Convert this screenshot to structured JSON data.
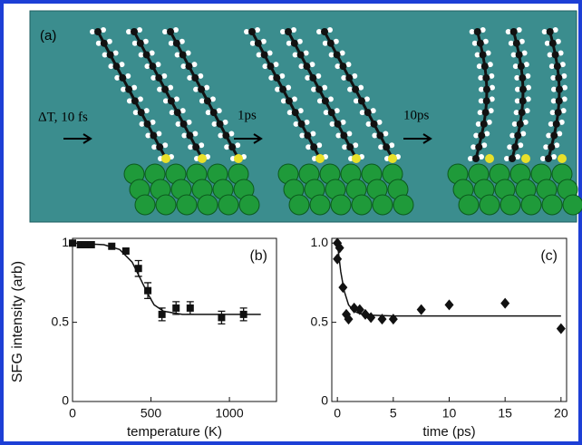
{
  "panel_a": {
    "label": "(a)",
    "step1": "ΔT, 10 fs",
    "step2": "1ps",
    "step3": "10ps"
  },
  "y_label": "SFG intensity (arb)",
  "chart_data": [
    {
      "type": "scatter",
      "panel": "(b)",
      "x_label": "temperature (K)",
      "marker": "square",
      "color": "#111111",
      "x": [
        0,
        50,
        80,
        120,
        250,
        340,
        420,
        480,
        570,
        660,
        750,
        950,
        1090
      ],
      "values": [
        1.0,
        0.99,
        0.99,
        0.99,
        0.98,
        0.95,
        0.84,
        0.7,
        0.55,
        0.59,
        0.59,
        0.53,
        0.55
      ],
      "errors": [
        0,
        0,
        0,
        0,
        0,
        0,
        0.05,
        0.05,
        0.04,
        0.04,
        0.04,
        0.04,
        0.04
      ],
      "fit": {
        "x": [
          0,
          200,
          300,
          380,
          440,
          480,
          520,
          580,
          700,
          1200
        ],
        "values": [
          1.0,
          0.99,
          0.96,
          0.88,
          0.76,
          0.68,
          0.61,
          0.57,
          0.55,
          0.55
        ]
      },
      "xlim": [
        0,
        1300
      ],
      "ylim": [
        0,
        1.03
      ],
      "xticks": [
        0,
        500,
        1000
      ],
      "yticks": [
        0,
        0.5,
        1
      ]
    },
    {
      "type": "scatter",
      "panel": "(c)",
      "x_label": "time (ps)",
      "marker": "diamond",
      "color": "#111111",
      "x": [
        0,
        0,
        0.2,
        0.5,
        0.8,
        1,
        1.5,
        2,
        2.5,
        3,
        4,
        5,
        7.5,
        10,
        15,
        20
      ],
      "values": [
        0.9,
        1.0,
        0.97,
        0.72,
        0.55,
        0.52,
        0.59,
        0.58,
        0.55,
        0.53,
        0.52,
        0.52,
        0.58,
        0.61,
        0.62,
        0.46
      ],
      "fit": {
        "x": [
          0,
          0.3,
          0.6,
          1,
          1.5,
          2,
          3,
          5,
          20
        ],
        "values": [
          1.0,
          0.82,
          0.7,
          0.61,
          0.57,
          0.555,
          0.545,
          0.54,
          0.54
        ]
      },
      "xlim": [
        -0.5,
        20.5
      ],
      "ylim": [
        0,
        1.03
      ],
      "xticks": [
        0,
        5,
        10,
        15,
        20
      ],
      "yticks": [
        0,
        0.5,
        {
          "value": 1,
          "label": "1.0"
        }
      ]
    }
  ]
}
